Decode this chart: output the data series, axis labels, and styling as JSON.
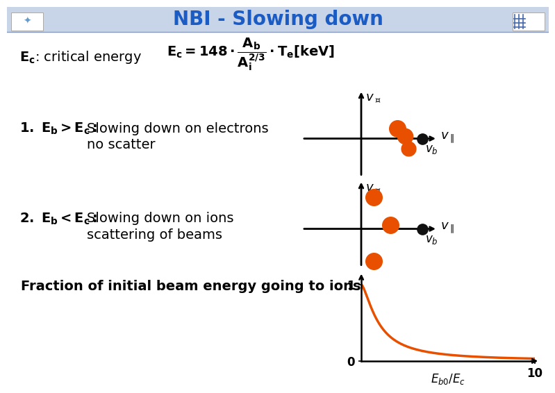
{
  "title": "NBI - Slowing down",
  "title_color": "#1a5bc4",
  "bg_color": "#ffffff",
  "header_bg": "#c8d4e8",
  "orange_color": "#e85000",
  "black_dot_color": "#111111",
  "text_color": "#000000",
  "ec_label": "E_c: critical energy",
  "case1_label": "1. E_b>E_c:",
  "case1_desc1": "Slowing down on electrons",
  "case1_desc2": "no scatter",
  "case2_label": "2. E_b<E_c:",
  "case2_desc1": "Slowing down on ions",
  "case2_desc2": "scattering of beams",
  "fraction_text": "Fraction of initial beam energy going to ions.",
  "graph_xlabel": "E_{b0}/E_c"
}
